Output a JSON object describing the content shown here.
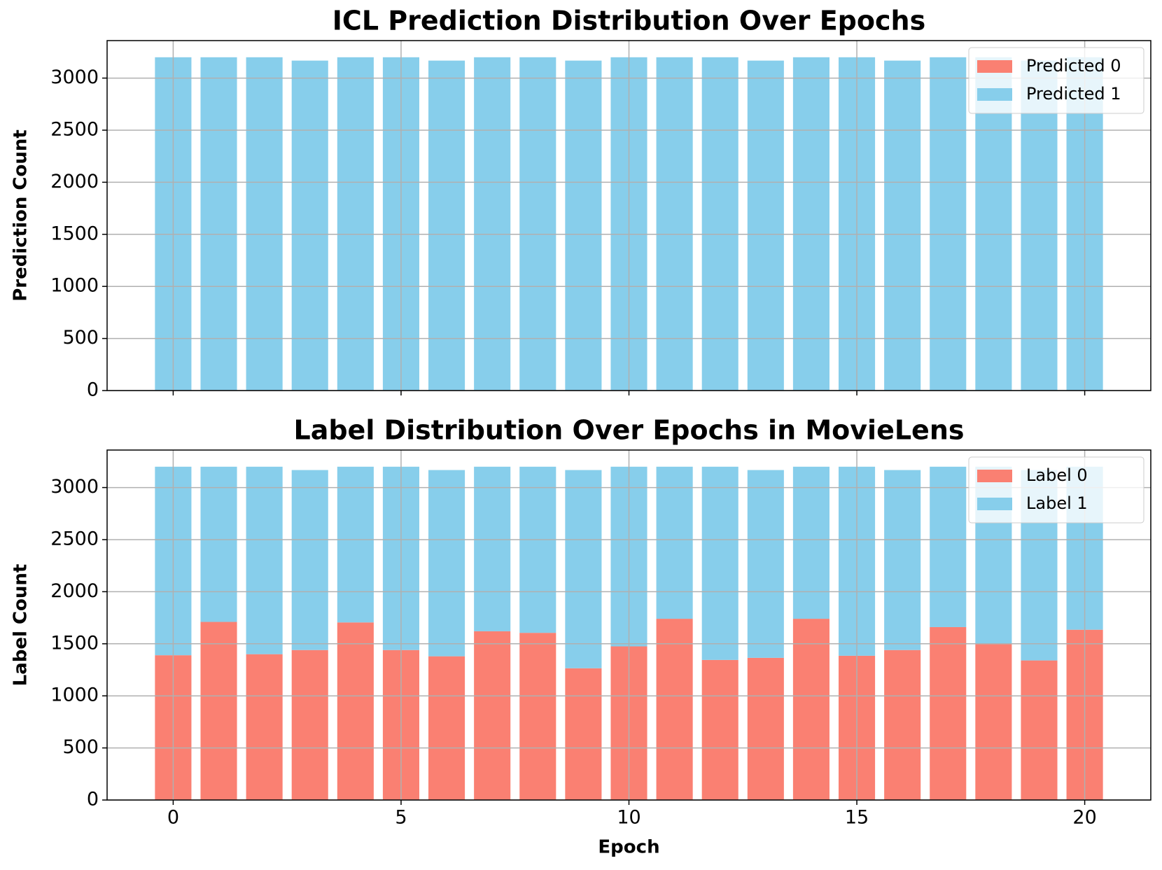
{
  "chart_data": [
    {
      "type": "bar",
      "stacked": true,
      "title": "ICL Prediction Distribution Over Epochs",
      "ylabel": "Prediction Count",
      "x": [
        0,
        1,
        2,
        3,
        4,
        5,
        6,
        7,
        8,
        9,
        10,
        11,
        12,
        13,
        14,
        15,
        16,
        17,
        18,
        19,
        20
      ],
      "series": [
        {
          "name": "Predicted 0",
          "color": "#fa8072",
          "values": [
            0,
            0,
            0,
            0,
            0,
            0,
            0,
            0,
            0,
            0,
            0,
            0,
            0,
            0,
            0,
            0,
            0,
            0,
            0,
            0,
            0
          ]
        },
        {
          "name": "Predicted 1",
          "color": "#87ceeb",
          "values": [
            3200,
            3200,
            3200,
            3168,
            3200,
            3200,
            3168,
            3200,
            3200,
            3168,
            3200,
            3200,
            3200,
            3168,
            3200,
            3200,
            3168,
            3200,
            3200,
            3168,
            3200
          ]
        }
      ],
      "xlim": [
        -1.45,
        21.45
      ],
      "ylim": [
        0,
        3360
      ],
      "xticks": [
        0,
        5,
        10,
        15,
        20
      ],
      "show_xtick_labels": false,
      "yticks": [
        0,
        500,
        1000,
        1500,
        2000,
        2500,
        3000
      ],
      "grid": true,
      "legend": "upper right"
    },
    {
      "type": "bar",
      "stacked": true,
      "title": "Label Distribution Over Epochs in MovieLens",
      "ylabel": "Label Count",
      "xlabel": "Epoch",
      "x": [
        0,
        1,
        2,
        3,
        4,
        5,
        6,
        7,
        8,
        9,
        10,
        11,
        12,
        13,
        14,
        15,
        16,
        17,
        18,
        19,
        20
      ],
      "series": [
        {
          "name": "Label 0",
          "color": "#fa8072",
          "values": [
            1390,
            1710,
            1400,
            1440,
            1705,
            1440,
            1380,
            1620,
            1605,
            1265,
            1475,
            1740,
            1345,
            1365,
            1740,
            1385,
            1440,
            1660,
            1495,
            1340,
            1635
          ]
        },
        {
          "name": "Label 1",
          "color": "#87ceeb",
          "values": [
            1810,
            1490,
            1800,
            1728,
            1495,
            1760,
            1788,
            1580,
            1595,
            1903,
            1725,
            1460,
            1855,
            1803,
            1460,
            1815,
            1728,
            1540,
            1705,
            1828,
            1565
          ]
        }
      ],
      "xlim": [
        -1.45,
        21.45
      ],
      "ylim": [
        0,
        3360
      ],
      "xticks": [
        0,
        5,
        10,
        15,
        20
      ],
      "show_xtick_labels": true,
      "yticks": [
        0,
        500,
        1000,
        1500,
        2000,
        2500,
        3000
      ],
      "grid": true,
      "legend": "upper right"
    }
  ]
}
